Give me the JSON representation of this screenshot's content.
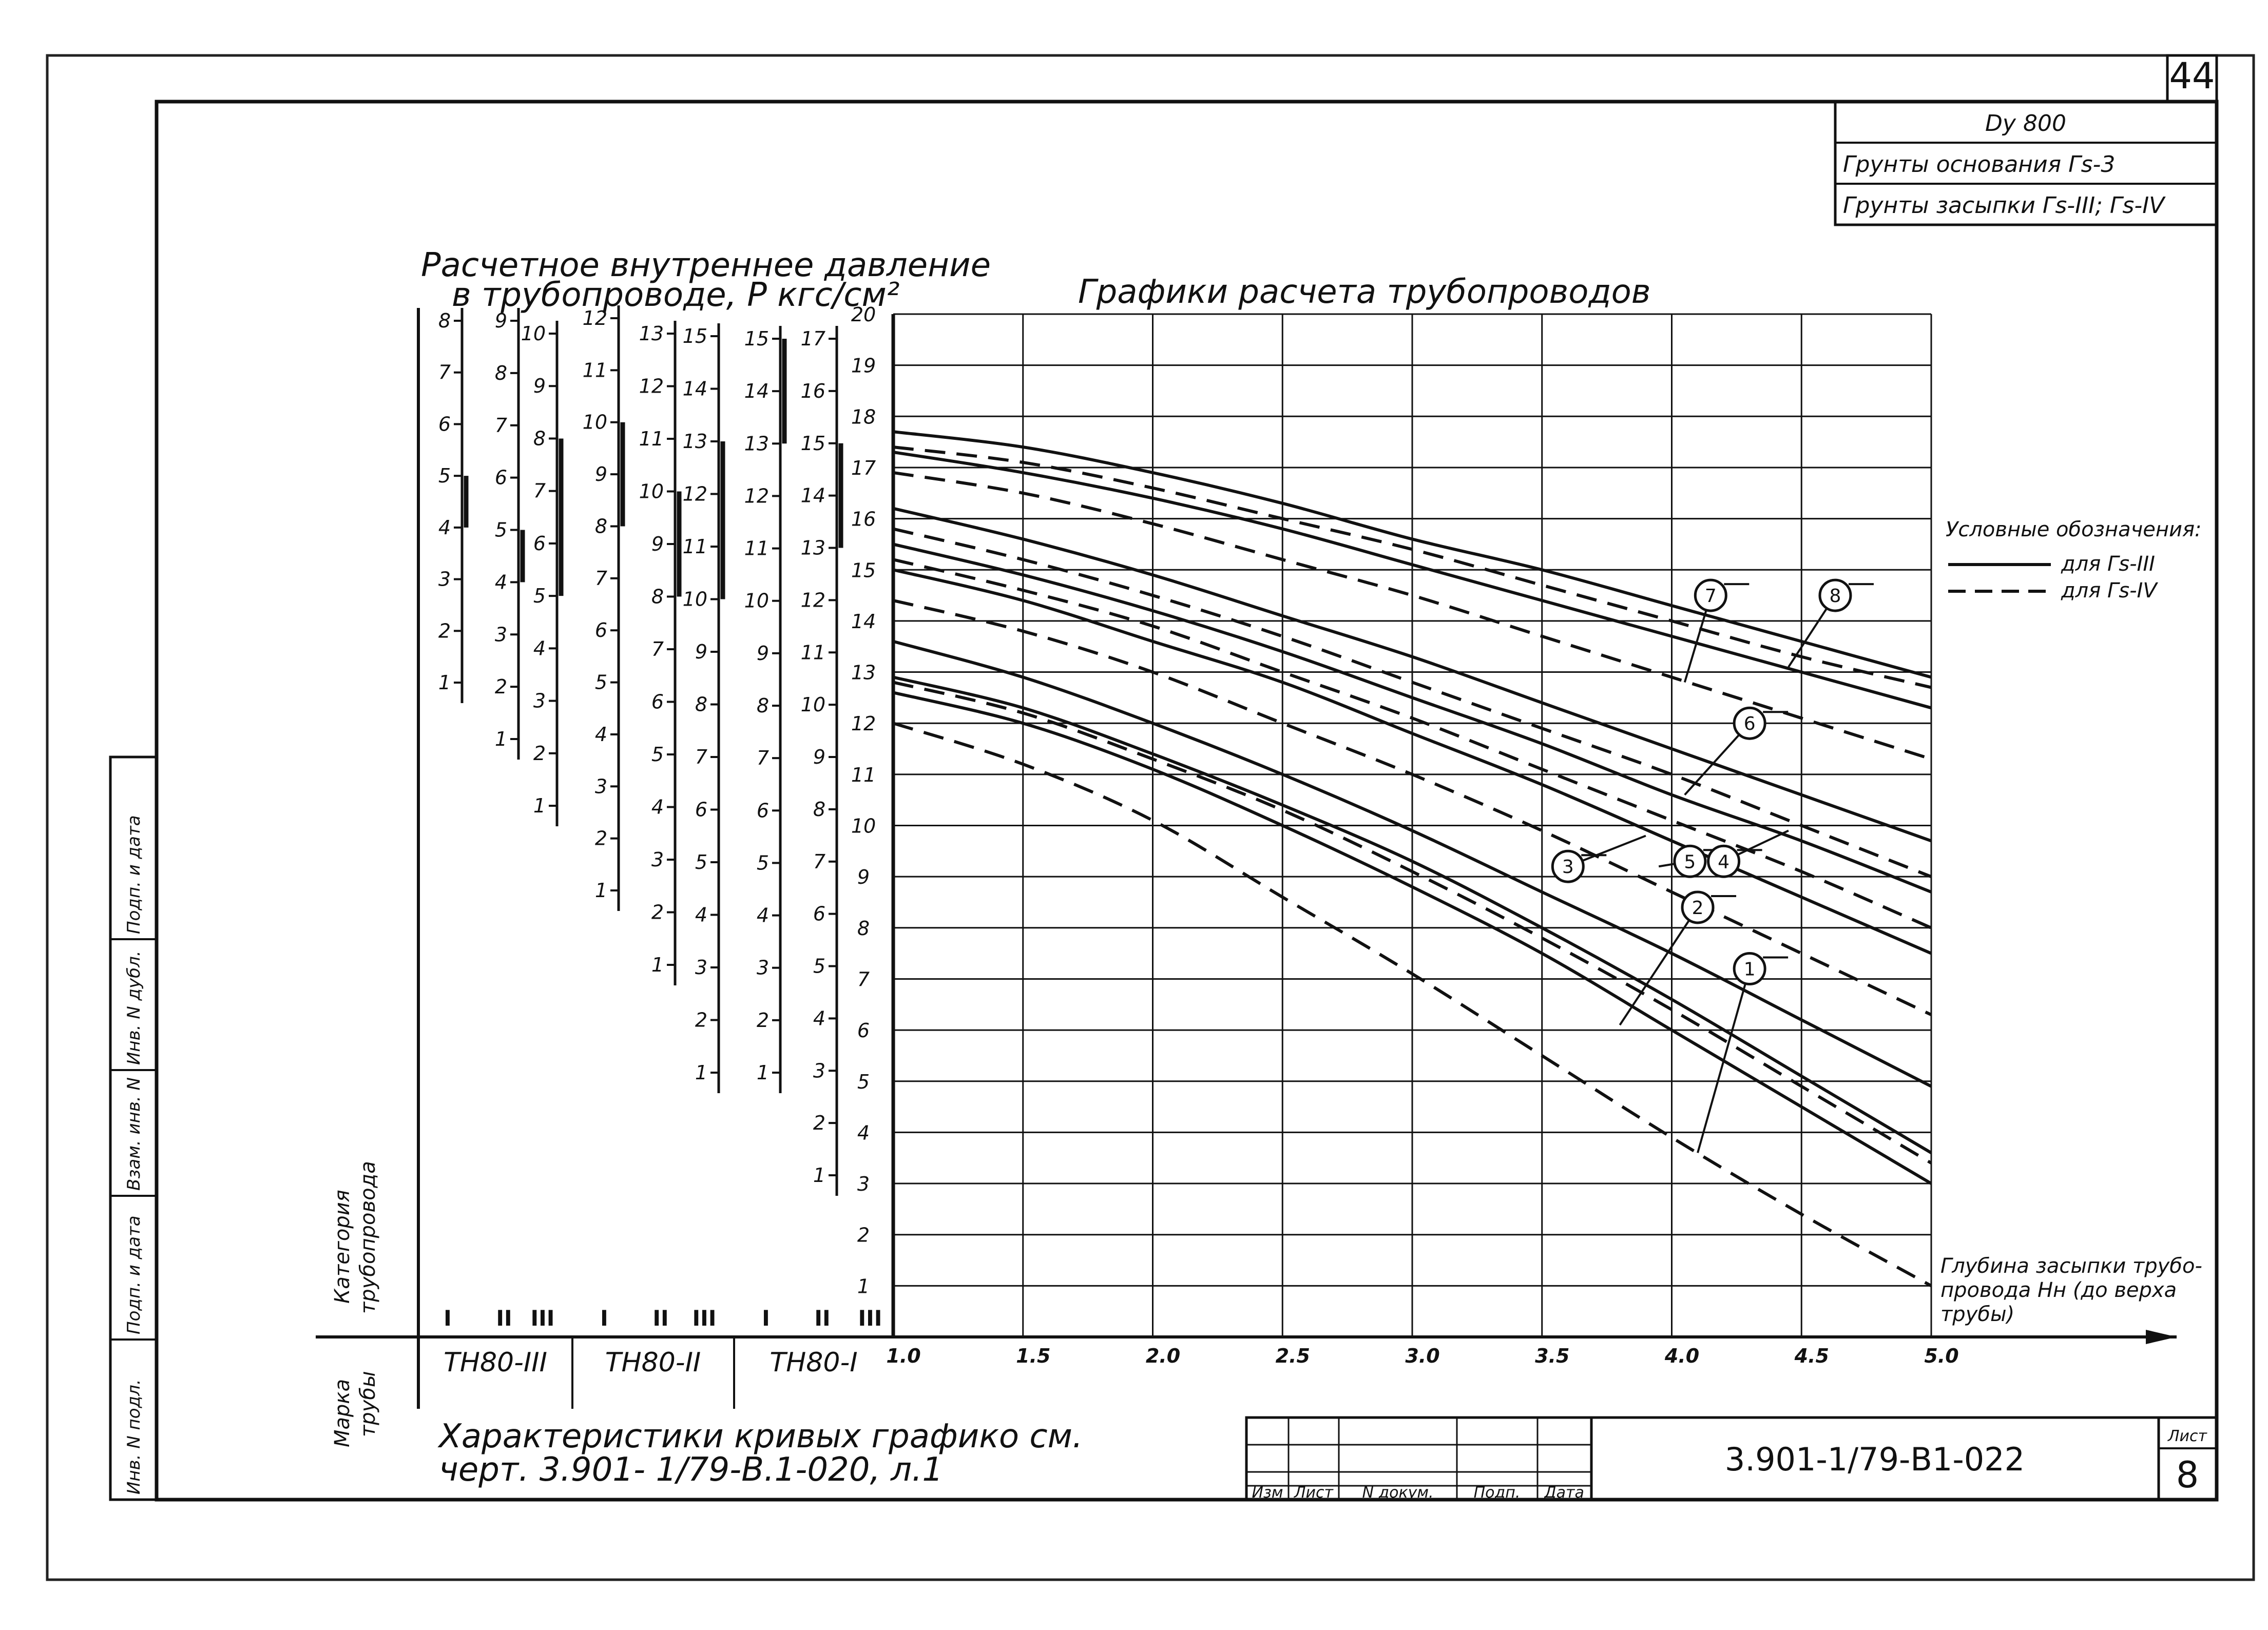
{
  "page": {
    "sheet_corner_number": "44",
    "header_box": {
      "line1": "Dy 800",
      "line2": "Грунты основания Гs-3",
      "line3": "Грунты засыпки Гs-III; Гs-IV"
    },
    "side_stamp": [
      "Инв. N подл.",
      "Подп. и дата",
      "Взам. инв. N",
      "Инв. N дубл.",
      "Подп. и дата"
    ],
    "characteristics_note": [
      "Характеристики кривых графико см.",
      "черт. 3.901- 1/79-В.1-020, л.1"
    ],
    "title_block": {
      "cols": [
        "Изм",
        "Лист",
        "N докум.",
        "Подп.",
        "Дата"
      ],
      "doc_number": "3.901-1/79-В1-022",
      "sheet_label": "Лист",
      "sheet_number": "8"
    }
  },
  "chart_data": {
    "type": "line",
    "title": "Графики расчета трубопроводов",
    "pressure_title": [
      "Расчетное внутреннее давление",
      "в трубопроводе, P кгс/см²"
    ],
    "xlabel": [
      "Глубина засыпки трубо-",
      "провода Нн (до верха",
      "трубы)"
    ],
    "ylabel": "",
    "xlim": [
      1.0,
      5.0
    ],
    "ylim": [
      0,
      20
    ],
    "x_ticks": [
      "1.0",
      "1.5",
      "2.0",
      "2.5",
      "3.0",
      "3.5",
      "4.0",
      "4.5",
      "5.0"
    ],
    "y_ticks": [
      "1",
      "2",
      "3",
      "4",
      "5",
      "6",
      "7",
      "8",
      "9",
      "10",
      "11",
      "12",
      "13",
      "14",
      "15",
      "16",
      "17",
      "18",
      "19",
      "20"
    ],
    "grid": true,
    "legend": {
      "title": "Условные обозначения:",
      "placement": "right",
      "entries": [
        {
          "label": "для Гs-III",
          "style": "solid"
        },
        {
          "label": "для Гs-IV",
          "style": "dashed"
        }
      ]
    },
    "x": [
      1.0,
      1.5,
      2.0,
      2.5,
      3.0,
      3.5,
      4.0,
      4.5,
      5.0
    ],
    "series": [
      {
        "style": "solid",
        "values": [
          17.7,
          17.4,
          16.9,
          16.3,
          15.6,
          15.0,
          14.3,
          13.6,
          12.9
        ]
      },
      {
        "style": "dashed",
        "values": [
          17.4,
          17.1,
          16.6,
          16.0,
          15.4,
          14.7,
          14.0,
          13.3,
          12.7
        ]
      },
      {
        "style": "solid",
        "values": [
          17.3,
          16.9,
          16.4,
          15.8,
          15.1,
          14.4,
          13.7,
          13.0,
          12.3
        ]
      },
      {
        "style": "dashed",
        "values": [
          16.9,
          16.5,
          15.9,
          15.2,
          14.5,
          13.7,
          12.9,
          12.1,
          11.3
        ]
      },
      {
        "style": "solid",
        "values": [
          16.2,
          15.6,
          14.9,
          14.1,
          13.3,
          12.4,
          11.5,
          10.6,
          9.7
        ]
      },
      {
        "style": "dashed",
        "values": [
          15.8,
          15.2,
          14.5,
          13.7,
          12.8,
          11.9,
          11.0,
          10.0,
          9.0
        ]
      },
      {
        "style": "solid",
        "values": [
          15.5,
          14.9,
          14.2,
          13.4,
          12.5,
          11.6,
          10.6,
          9.7,
          8.7
        ]
      },
      {
        "style": "dashed",
        "values": [
          15.2,
          14.6,
          13.9,
          13.0,
          12.1,
          11.1,
          10.1,
          9.1,
          8.0
        ]
      },
      {
        "style": "solid",
        "values": [
          15.0,
          14.4,
          13.6,
          12.8,
          11.8,
          10.8,
          9.7,
          8.6,
          7.5
        ]
      },
      {
        "style": "dashed",
        "values": [
          14.4,
          13.8,
          13.0,
          12.0,
          11.0,
          9.9,
          8.7,
          7.5,
          6.3
        ]
      },
      {
        "style": "solid",
        "values": [
          13.6,
          12.9,
          12.0,
          11.0,
          9.9,
          8.7,
          7.5,
          6.2,
          4.9
        ]
      },
      {
        "style": "solid",
        "values": [
          12.9,
          12.3,
          11.4,
          10.4,
          9.3,
          8.0,
          6.6,
          5.1,
          3.6
        ]
      },
      {
        "style": "dashed",
        "values": [
          12.8,
          12.2,
          11.3,
          10.3,
          9.1,
          7.8,
          6.4,
          4.9,
          3.4
        ]
      },
      {
        "style": "solid",
        "values": [
          12.6,
          12.0,
          11.1,
          10.0,
          8.8,
          7.5,
          6.0,
          4.5,
          3.0
        ]
      },
      {
        "style": "dashed",
        "values": [
          12.0,
          11.2,
          10.1,
          8.6,
          7.1,
          5.5,
          3.9,
          2.4,
          1.0
        ]
      }
    ],
    "curve_labels": [
      {
        "text": "1",
        "x": 4.3,
        "y": 7.2,
        "leader_to": [
          4.1,
          3.6
        ]
      },
      {
        "text": "2",
        "x": 4.1,
        "y": 8.4,
        "leader_to": [
          3.8,
          6.1
        ]
      },
      {
        "text": "3",
        "x": 3.6,
        "y": 9.2,
        "leader_to": [
          3.9,
          9.8
        ]
      },
      {
        "text": "5",
        "x": 4.07,
        "y": 9.3,
        "leader_to": [
          3.95,
          9.2
        ]
      },
      {
        "text": "4",
        "x": 4.2,
        "y": 9.3,
        "leader_to": [
          4.45,
          9.9
        ]
      },
      {
        "text": "6",
        "x": 4.3,
        "y": 12.0,
        "leader_to": [
          4.05,
          10.6
        ]
      },
      {
        "text": "7",
        "x": 4.15,
        "y": 14.5,
        "leader_to": [
          4.05,
          12.8
        ]
      },
      {
        "text": "8",
        "x": 4.63,
        "y": 14.5,
        "leader_to": [
          4.45,
          13.1
        ]
      }
    ],
    "pressure_scales": [
      {
        "brand": "ТН80-III",
        "category": "I",
        "ticks": [
          "1",
          "2",
          "3",
          "4",
          "5",
          "6",
          "7",
          "8"
        ],
        "range": [
          1,
          8
        ],
        "bracket": [
          4,
          5
        ]
      },
      {
        "brand": "ТН80-III",
        "category": "II",
        "ticks": [
          "1",
          "2",
          "3",
          "4",
          "5",
          "6",
          "7",
          "8",
          "9"
        ],
        "range": [
          1,
          9
        ],
        "bracket": [
          4,
          5
        ]
      },
      {
        "brand": "ТН80-III",
        "category": "III",
        "ticks": [
          "1",
          "2",
          "3",
          "4",
          "5",
          "6",
          "7",
          "8",
          "9",
          "10"
        ],
        "range": [
          1,
          10
        ],
        "bracket": [
          5,
          8
        ]
      },
      {
        "brand": "ТН80-II",
        "category": "I",
        "ticks": [
          "1",
          "2",
          "3",
          "4",
          "5",
          "6",
          "7",
          "8",
          "9",
          "10",
          "11",
          "12"
        ],
        "range": [
          1,
          12
        ],
        "bracket": [
          8,
          10
        ]
      },
      {
        "brand": "ТН80-II",
        "category": "II",
        "ticks": [
          "1",
          "2",
          "3",
          "4",
          "5",
          "6",
          "7",
          "8",
          "9",
          "10",
          "11",
          "12",
          "13"
        ],
        "range": [
          1,
          13
        ],
        "bracket": [
          8,
          10
        ]
      },
      {
        "brand": "ТН80-II",
        "category": "III",
        "ticks": [
          "1",
          "2",
          "3",
          "4",
          "5",
          "6",
          "7",
          "8",
          "9",
          "10",
          "11",
          "12",
          "13",
          "14",
          "15"
        ],
        "range": [
          1,
          15
        ],
        "bracket": [
          10,
          13
        ]
      },
      {
        "brand": "ТН80-I",
        "category": "I",
        "ticks": [
          "1",
          "2",
          "3",
          "4",
          "5",
          "6",
          "7",
          "8",
          "9",
          "10",
          "11",
          "12",
          "13",
          "14",
          "15"
        ],
        "range": [
          1,
          15
        ],
        "bracket": [
          13,
          15
        ]
      },
      {
        "brand": "ТН80-I",
        "category": "II",
        "ticks": [
          "1",
          "2",
          "3",
          "4",
          "5",
          "6",
          "7",
          "8",
          "9",
          "10",
          "11",
          "12",
          "13",
          "14",
          "15",
          "16",
          "17"
        ],
        "range": [
          1,
          17
        ],
        "bracket": [
          13,
          15
        ]
      }
    ],
    "category_row_label": [
      "Категория",
      "трубопровода"
    ],
    "brand_row_label": [
      "Марка",
      "трубы"
    ],
    "brands": [
      "ТН80-III",
      "ТН80-II",
      "ТН80-I"
    ]
  }
}
